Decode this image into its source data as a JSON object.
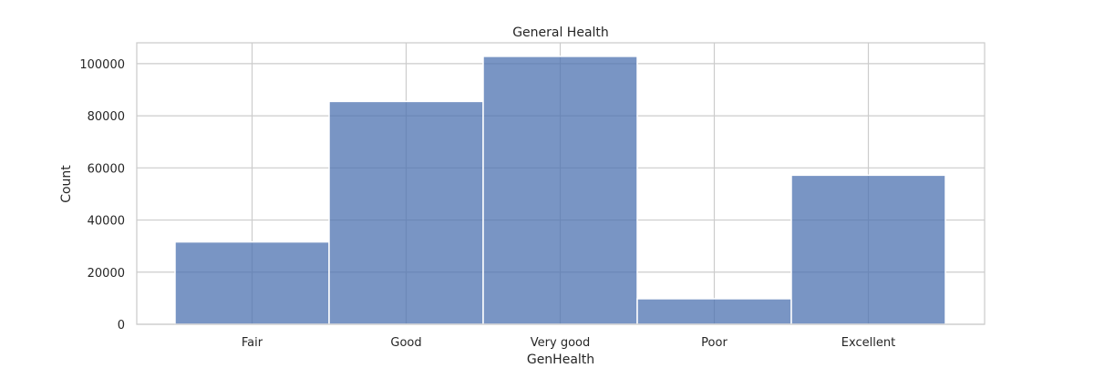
{
  "chart_data": {
    "type": "bar",
    "title": "General Health",
    "xlabel": "GenHealth",
    "ylabel": "Count",
    "categories": [
      "Fair",
      "Good",
      "Very good",
      "Poor",
      "Excellent"
    ],
    "values": [
      31600,
      85500,
      102800,
      9800,
      57200
    ],
    "ylim": [
      0,
      108000
    ],
    "yticks": [
      0,
      20000,
      40000,
      60000,
      80000,
      100000
    ],
    "ytick_labels": [
      "0",
      "20000",
      "40000",
      "60000",
      "80000",
      "100000"
    ],
    "grid": true,
    "legend": "none",
    "colors": {
      "bar_fill": "#4c72b0",
      "bar_edge": "#ffffff",
      "grid": "#cccccc",
      "frame": "#cccccc",
      "text": "#262626"
    }
  }
}
